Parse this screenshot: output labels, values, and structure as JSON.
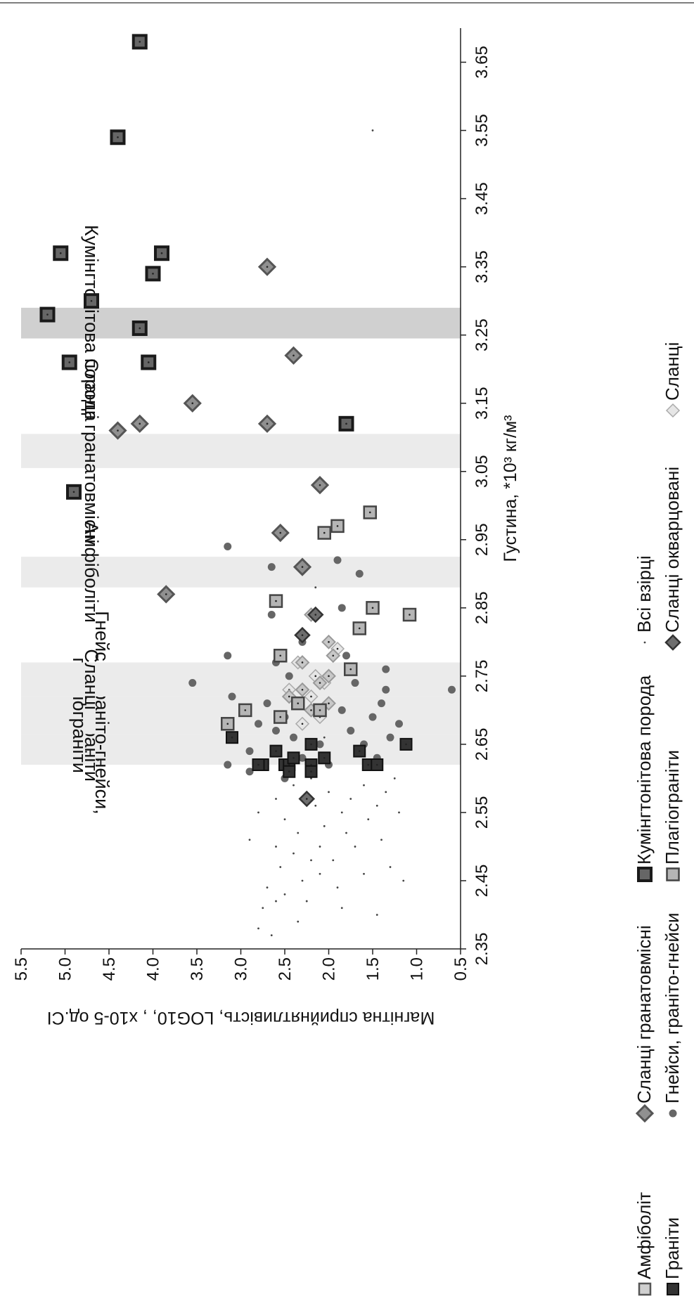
{
  "chart_data": {
    "type": "scatter",
    "xlabel": "Густина, *10³ кг/м³",
    "ylabel": "Магнітна сприйнятливість, LOG10, , х10-5 од.СІ",
    "xlim": [
      2.35,
      3.7
    ],
    "ylim": [
      0.5,
      5.5
    ],
    "orientation": "rotated 90° counter-clockwise",
    "x_ticks": [
      "2.35",
      "2.45",
      "2.55",
      "2.65",
      "2.75",
      "2.85",
      "2.95",
      "3.05",
      "3.15",
      "3.25",
      "3.35",
      "3.45",
      "3.55",
      "3.65"
    ],
    "y_ticks": [
      "0.5",
      "1.0",
      "1.5",
      "2.0",
      "2.5",
      "3.0",
      "3.5",
      "4.0",
      "4.5",
      "5.0",
      "5.5"
    ],
    "grid": false,
    "legend_position": "bottom",
    "bands": [
      {
        "label": "Граніти",
        "x0": 2.62,
        "x1": 2.665
      },
      {
        "label": "Гнейси, граніто-гнейси, плагіограніти",
        "x0": 2.665,
        "x1": 2.72
      },
      {
        "label": "Сланці",
        "x0": 2.72,
        "x1": 2.77
      },
      {
        "label": "Амфіболіти",
        "x0": 2.88,
        "x1": 2.925
      },
      {
        "label": "Сланці гранатовмісні",
        "x0": 3.055,
        "x1": 3.105
      },
      {
        "label": "Кумінгтонітова порода",
        "x0": 3.245,
        "x1": 3.29
      }
    ],
    "series": [
      {
        "name": "Граніти",
        "marker": "square-dark",
        "points": [
          [
            2.62,
            2.75
          ],
          [
            2.62,
            2.8
          ],
          [
            2.62,
            2.5
          ],
          [
            2.62,
            2.45
          ],
          [
            2.62,
            2.2
          ],
          [
            2.62,
            1.55
          ],
          [
            2.62,
            1.45
          ],
          [
            2.63,
            2.4
          ],
          [
            2.63,
            2.05
          ],
          [
            2.64,
            2.6
          ],
          [
            2.64,
            1.65
          ],
          [
            2.65,
            2.2
          ],
          [
            2.65,
            1.12
          ],
          [
            2.66,
            3.1
          ],
          [
            2.61,
            2.45
          ],
          [
            2.61,
            2.2
          ]
        ]
      },
      {
        "name": "Гнейси, граніто-гнейси",
        "marker": "dot",
        "points": [
          [
            2.6,
            2.5
          ],
          [
            2.61,
            2.9
          ],
          [
            2.62,
            3.15
          ],
          [
            2.62,
            2.0
          ],
          [
            2.63,
            2.3
          ],
          [
            2.63,
            1.45
          ],
          [
            2.64,
            2.9
          ],
          [
            2.65,
            2.1
          ],
          [
            2.65,
            1.6
          ],
          [
            2.66,
            2.4
          ],
          [
            2.66,
            1.3
          ],
          [
            2.67,
            2.6
          ],
          [
            2.67,
            1.75
          ],
          [
            2.68,
            2.8
          ],
          [
            2.68,
            1.2
          ],
          [
            2.69,
            2.5
          ],
          [
            2.69,
            1.5
          ],
          [
            2.7,
            2.95
          ],
          [
            2.7,
            1.85
          ],
          [
            2.71,
            2.7
          ],
          [
            2.71,
            1.4
          ],
          [
            2.72,
            3.1
          ],
          [
            2.72,
            2.2
          ],
          [
            2.73,
            1.35
          ],
          [
            2.73,
            0.6
          ],
          [
            2.74,
            3.55
          ],
          [
            2.74,
            1.7
          ],
          [
            2.75,
            2.45
          ],
          [
            2.76,
            1.35
          ],
          [
            2.77,
            2.6
          ],
          [
            2.78,
            3.15
          ],
          [
            2.78,
            1.8
          ],
          [
            2.8,
            2.3
          ],
          [
            2.84,
            2.65
          ],
          [
            2.85,
            1.85
          ],
          [
            2.91,
            2.65
          ],
          [
            2.92,
            1.9
          ],
          [
            2.94,
            3.15
          ],
          [
            2.9,
            1.65
          ]
        ]
      },
      {
        "name": "Плагіограніти",
        "marker": "square-light",
        "points": [
          [
            2.68,
            3.15
          ],
          [
            2.69,
            2.55
          ],
          [
            2.7,
            2.95
          ],
          [
            2.7,
            2.1
          ],
          [
            2.71,
            2.35
          ],
          [
            2.76,
            1.75
          ],
          [
            2.78,
            2.55
          ],
          [
            2.82,
            1.65
          ],
          [
            2.84,
            1.08
          ],
          [
            2.85,
            1.5
          ],
          [
            2.86,
            2.6
          ],
          [
            2.96,
            2.05
          ],
          [
            2.97,
            1.9
          ],
          [
            2.99,
            1.53
          ]
        ]
      },
      {
        "name": "Кумінгтонітова порода",
        "marker": "square-black",
        "points": [
          [
            3.02,
            4.9
          ],
          [
            3.12,
            1.8
          ],
          [
            3.21,
            4.95
          ],
          [
            3.21,
            4.05
          ],
          [
            3.26,
            4.15
          ],
          [
            3.28,
            5.2
          ],
          [
            3.3,
            4.7
          ],
          [
            3.34,
            4.0
          ],
          [
            3.37,
            5.05
          ],
          [
            3.37,
            3.9
          ],
          [
            3.54,
            4.4
          ],
          [
            3.68,
            4.15
          ]
        ]
      },
      {
        "name": "Амфіболіт",
        "marker": "diamond-light",
        "points": [
          [
            2.7,
            2.2
          ],
          [
            2.71,
            2.0
          ],
          [
            2.72,
            2.45
          ],
          [
            2.73,
            2.3
          ],
          [
            2.74,
            2.1
          ],
          [
            2.75,
            2.0
          ],
          [
            2.77,
            2.3
          ],
          [
            2.78,
            1.95
          ],
          [
            2.8,
            2.0
          ],
          [
            2.84,
            2.2
          ]
        ]
      },
      {
        "name": "Сланці гранатовмісні",
        "marker": "diamond-mid",
        "points": [
          [
            2.87,
            3.85
          ],
          [
            2.91,
            2.3
          ],
          [
            2.96,
            2.55
          ],
          [
            3.03,
            2.1
          ],
          [
            3.12,
            2.7
          ],
          [
            3.12,
            4.15
          ],
          [
            3.11,
            4.4
          ],
          [
            3.15,
            3.55
          ],
          [
            3.22,
            2.4
          ],
          [
            3.35,
            2.7
          ]
        ]
      },
      {
        "name": "Сланці окварцовані",
        "marker": "diamond-dark",
        "points": [
          [
            2.57,
            2.25
          ],
          [
            2.81,
            2.3
          ],
          [
            2.84,
            2.15
          ]
        ]
      },
      {
        "name": "Сланці",
        "marker": "diamond-white",
        "points": [
          [
            2.68,
            2.3
          ],
          [
            2.69,
            2.1
          ],
          [
            2.72,
            2.2
          ],
          [
            2.73,
            2.45
          ],
          [
            2.74,
            2.05
          ],
          [
            2.75,
            2.15
          ],
          [
            2.77,
            2.35
          ],
          [
            2.79,
            1.9
          ]
        ]
      },
      {
        "name": "Всі взірці",
        "marker": "tiny-dot",
        "points": [
          [
            2.37,
            2.65
          ],
          [
            2.38,
            2.8
          ],
          [
            2.39,
            2.35
          ],
          [
            2.4,
            1.45
          ],
          [
            2.41,
            2.75
          ],
          [
            2.41,
            1.85
          ],
          [
            2.42,
            2.6
          ],
          [
            2.42,
            2.25
          ],
          [
            2.43,
            2.5
          ],
          [
            2.44,
            2.7
          ],
          [
            2.44,
            1.9
          ],
          [
            2.45,
            2.3
          ],
          [
            2.45,
            1.15
          ],
          [
            2.46,
            2.1
          ],
          [
            2.46,
            1.6
          ],
          [
            2.47,
            2.55
          ],
          [
            2.48,
            2.2
          ],
          [
            2.48,
            1.95
          ],
          [
            2.49,
            2.4
          ],
          [
            2.5,
            2.1
          ],
          [
            2.5,
            1.7
          ],
          [
            2.51,
            2.9
          ],
          [
            2.51,
            1.4
          ],
          [
            2.52,
            2.35
          ],
          [
            2.52,
            1.8
          ],
          [
            2.53,
            2.05
          ],
          [
            2.54,
            2.5
          ],
          [
            2.54,
            1.55
          ],
          [
            2.55,
            2.8
          ],
          [
            2.55,
            1.85
          ],
          [
            2.56,
            2.15
          ],
          [
            2.56,
            1.45
          ],
          [
            2.57,
            2.6
          ],
          [
            2.57,
            1.75
          ],
          [
            2.58,
            2.0
          ],
          [
            2.58,
            1.35
          ],
          [
            2.59,
            2.4
          ],
          [
            2.59,
            1.6
          ],
          [
            2.6,
            2.2
          ],
          [
            2.6,
            1.25
          ],
          [
            2.55,
            1.2
          ],
          [
            2.5,
            2.6
          ],
          [
            2.47,
            1.3
          ],
          [
            3.55,
            1.5
          ],
          [
            2.88,
            2.15
          ],
          [
            2.66,
            2.05
          ]
        ]
      }
    ]
  },
  "legend": {
    "items": [
      {
        "label": "Граніти",
        "marker": "square-dark"
      },
      {
        "label": "Гнейси, граніто-гнейси",
        "marker": "dot"
      },
      {
        "label": "Плагіограніти",
        "marker": "square-light"
      },
      {
        "label": "Сланці окварцовані",
        "marker": "diamond-dark"
      },
      {
        "label": "Сланці",
        "marker": "diamond-white"
      },
      {
        "label": "Амфіболіт",
        "marker": "square-light-outline"
      },
      {
        "label": "Сланці гранатовмісні",
        "marker": "diamond-mid"
      },
      {
        "label": "Кумінгтонітова порода",
        "marker": "square-black"
      },
      {
        "label": "Всі взірці",
        "marker": "tiny-dot"
      }
    ]
  },
  "colors": {
    "band_light": "#ebebeb",
    "band_dark": "#d0d0d0",
    "square_dark": "#333333",
    "square_black": "#1a1a1a",
    "square_light": "#b5b5b5",
    "dot": "#666666",
    "diamond_dark": "#6e6e6e",
    "diamond_mid": "#909090",
    "diamond_light": "#c8c8c8",
    "diamond_white": "#e6e6e6",
    "tiny_dot": "#444444"
  }
}
